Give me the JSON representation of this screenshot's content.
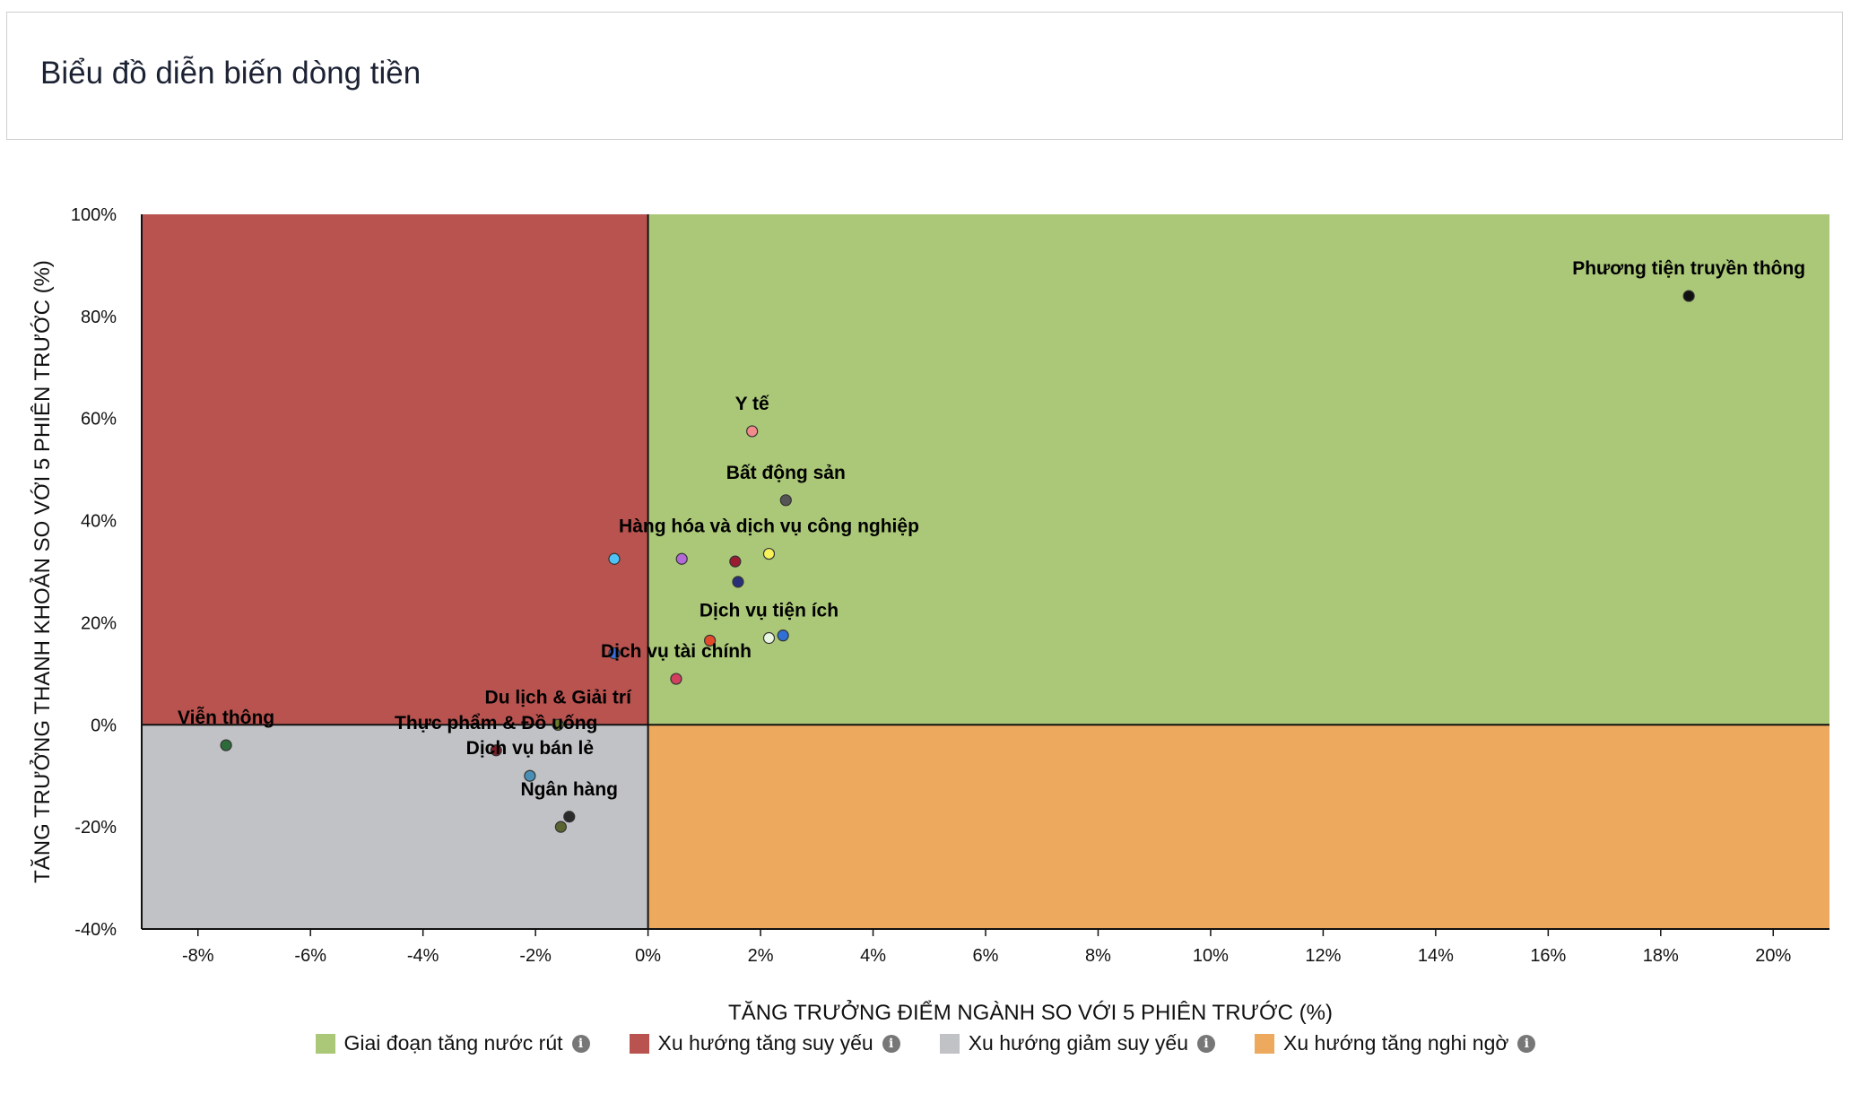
{
  "header": {
    "title": "Biểu đồ diễn biến dòng tiền"
  },
  "chart_data": {
    "type": "scatter",
    "xlabel": "TĂNG TRƯỞNG ĐIỂM NGÀNH SO VỚI 5 PHIÊN TRƯỚC (%)",
    "ylabel": "TĂNG TRƯỞNG THANH KHOẢN SO VỚI 5 PHIÊN TRƯỚC (%)",
    "xlim": [
      -9,
      21
    ],
    "ylim": [
      -40,
      100
    ],
    "xticks": [
      "-8%",
      "-6%",
      "-4%",
      "-2%",
      "0%",
      "2%",
      "4%",
      "6%",
      "8%",
      "10%",
      "12%",
      "14%",
      "16%",
      "18%",
      "20%"
    ],
    "yticks": [
      "100%",
      "80%",
      "60%",
      "40%",
      "20%",
      "0%",
      "-20%",
      "-40%"
    ],
    "xtick_values": [
      -8,
      -6,
      -4,
      -2,
      0,
      2,
      4,
      6,
      8,
      10,
      12,
      14,
      16,
      18,
      20
    ],
    "ytick_values": [
      100,
      80,
      60,
      40,
      20,
      0,
      -20,
      -40
    ],
    "quadrants": [
      {
        "name": "Giai đoạn tăng nước rút",
        "x": [
          0,
          21
        ],
        "y": [
          0,
          100
        ],
        "color": "#abc878"
      },
      {
        "name": "Xu hướng tăng suy yếu",
        "x": [
          -9,
          0
        ],
        "y": [
          0,
          100
        ],
        "color": "#b9534f"
      },
      {
        "name": "Xu hướng giảm suy yếu",
        "x": [
          -9,
          0
        ],
        "y": [
          -40,
          0
        ],
        "color": "#c1c2c5"
      },
      {
        "name": "Xu hướng tăng nghi ngờ",
        "x": [
          0,
          21
        ],
        "y": [
          -40,
          0
        ],
        "color": "#eda95e"
      }
    ],
    "points": [
      {
        "label": "Phương tiện truyền thông",
        "x": 18.5,
        "y": 84,
        "color": "#111111"
      },
      {
        "label": "Y tế",
        "x": 1.85,
        "y": 57.5,
        "color": "#f28b8b"
      },
      {
        "label": "Bất động sản",
        "x": 2.45,
        "y": 44,
        "color": "#555555"
      },
      {
        "label": "Hàng hóa và dịch vụ công nghiệp",
        "x": 2.15,
        "y": 33.5,
        "color": "#f7f25a"
      },
      {
        "label": "",
        "x": -0.6,
        "y": 32.5,
        "color": "#4fc3f7"
      },
      {
        "label": "",
        "x": 0.6,
        "y": 32.5,
        "color": "#b36ad6"
      },
      {
        "label": "",
        "x": 1.55,
        "y": 32,
        "color": "#9b1b30"
      },
      {
        "label": "",
        "x": 1.6,
        "y": 28,
        "color": "#2a2f7a"
      },
      {
        "label": "Dịch vụ tiện ích",
        "x": 2.15,
        "y": 17,
        "color": "#e8f5e0"
      },
      {
        "label": "",
        "x": 2.4,
        "y": 17.5,
        "color": "#2f6fd6"
      },
      {
        "label": "",
        "x": 1.1,
        "y": 16.5,
        "color": "#e34a2b"
      },
      {
        "label": "Dịch vụ tài chính",
        "x": 0.5,
        "y": 9,
        "color": "#d1405e"
      },
      {
        "label": "",
        "x": -0.6,
        "y": 14,
        "color": "#3a6fd8"
      },
      {
        "label": "Du lịch & Giải trí",
        "x": -1.6,
        "y": 0,
        "color": "#6b7a2e"
      },
      {
        "label": "Viễn thông",
        "x": -7.5,
        "y": -4,
        "color": "#2e6b3a"
      },
      {
        "label": "Thực phẩm & Đồ uống",
        "x": -2.7,
        "y": -5,
        "color": "#7a1f2a"
      },
      {
        "label": "Dịch vụ bán lẻ",
        "x": -2.1,
        "y": -10,
        "color": "#4a8fb5"
      },
      {
        "label": "Ngân hàng",
        "x": -1.4,
        "y": -18,
        "color": "#2b2b2b"
      },
      {
        "label": "",
        "x": -1.55,
        "y": -20,
        "color": "#5a6430"
      }
    ]
  },
  "legend": {
    "items": [
      {
        "label": "Giai đoạn tăng nước rút",
        "color": "#abc878"
      },
      {
        "label": "Xu hướng tăng suy yếu",
        "color": "#b9534f"
      },
      {
        "label": "Xu hướng giảm suy yếu",
        "color": "#c1c2c5"
      },
      {
        "label": "Xu hướng tăng nghi ngờ",
        "color": "#eda95e"
      }
    ],
    "info_icon": "i"
  }
}
